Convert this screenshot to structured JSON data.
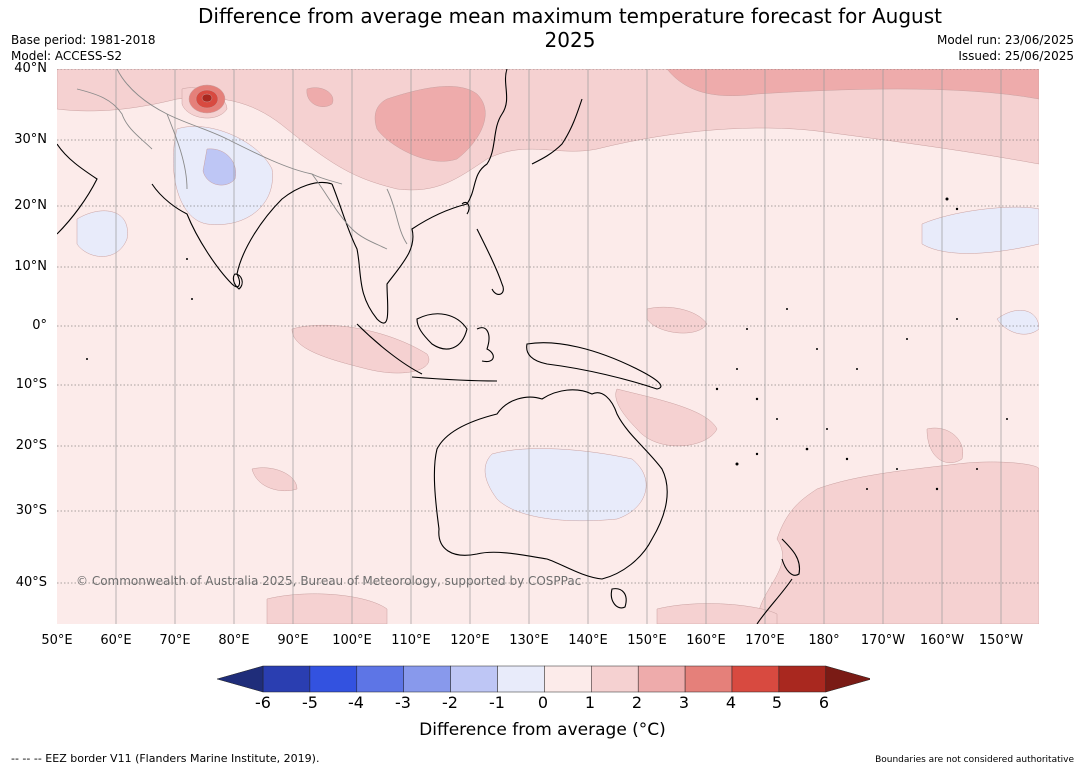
{
  "title": "Difference from average mean maximum temperature forecast for August 2025",
  "meta": {
    "base_period": "Base period: 1981-2018",
    "model": "Model: ACCESS-S2",
    "model_run": "Model run: 23/06/2025",
    "issued": "Issued: 25/06/2025"
  },
  "latitude_labels": [
    "40°N",
    "30°N",
    "20°N",
    "10°N",
    "0°",
    "10°S",
    "20°S",
    "30°S",
    "40°S"
  ],
  "longitude_labels": [
    "50°E",
    "60°E",
    "70°E",
    "80°E",
    "90°E",
    "100°E",
    "110°E",
    "120°E",
    "130°E",
    "140°E",
    "150°E",
    "160°E",
    "170°E",
    "180°",
    "170°W",
    "160°W",
    "150°W"
  ],
  "copyright": "© Commonwealth of Australia 2025, Bureau of Meteorology, supported by COSPPac",
  "colorbar": {
    "label": "Difference from average (°C)",
    "ticks": [
      "-6",
      "-5",
      "-4",
      "-3",
      "-2",
      "-1",
      "0",
      "1",
      "2",
      "3",
      "4",
      "5",
      "6"
    ],
    "colors": [
      "#1f2d7a",
      "#2a3eb1",
      "#3352e0",
      "#5d75e6",
      "#8899ec",
      "#bec6f5",
      "#e8ebfa",
      "#fcebea",
      "#f5d1d1",
      "#eeabab",
      "#e5807a",
      "#d84a40",
      "#a9281f",
      "#7a1b15"
    ]
  },
  "footer": {
    "eez": "--  --  -- EEZ border V11 (Flanders Marine Institute, 2019).",
    "boundaries": "Boundaries are not considered authoritative"
  }
}
